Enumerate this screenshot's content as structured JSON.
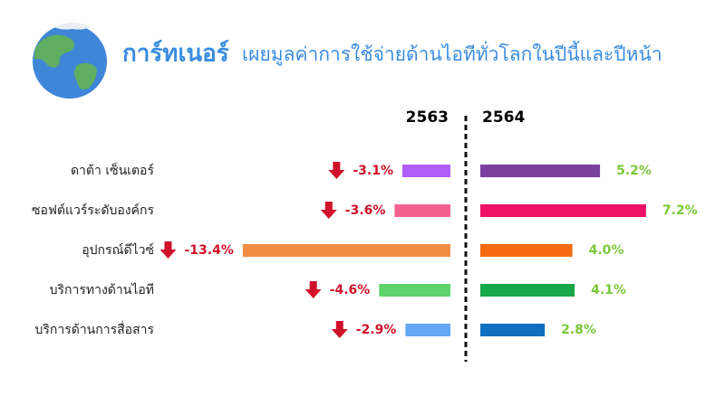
{
  "chart_data": {
    "type": "diverging-bar",
    "title": "การ์ทเนอร์",
    "subtitle": "เผยมูลค่าการใช้จ่ายด้านไอทีทั่วโลกในปีนี้และปีหน้า",
    "categories": [
      "ดาต้า เซ็นเตอร์",
      "ซอฟต์แวร์ระดับองค์กร",
      "อุปกรณ์ดีไวซ์",
      "บริการทางด้านไอที",
      "บริการด้านการสื่อสาร"
    ],
    "series": [
      {
        "name": "2563",
        "colors": [
          "#b05cf8",
          "#f4608f",
          "#f28c43",
          "#5dd36a",
          "#62a8f5"
        ],
        "values": [
          -3.1,
          -3.6,
          -13.4,
          -4.6,
          -2.9
        ],
        "value_labels": [
          "-3.1%",
          "-3.6%",
          "-13.4%",
          "-4.6%",
          "-2.9%"
        ],
        "label_color": "#d0112b"
      },
      {
        "name": "2564",
        "colors": [
          "#7b3fa0",
          "#ee1166",
          "#f56a10",
          "#18a84a",
          "#1070c0"
        ],
        "values": [
          5.2,
          7.2,
          4.0,
          4.1,
          2.8
        ],
        "value_labels": [
          "5.2%",
          "7.2%",
          "4.0%",
          "4.1%",
          "2.8%"
        ],
        "label_color": "#7cc93a"
      }
    ]
  }
}
